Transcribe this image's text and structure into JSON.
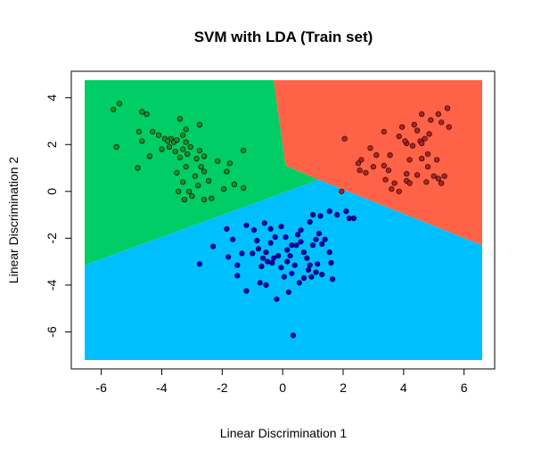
{
  "chart_data": {
    "type": "scatter",
    "title": "SVM with LDA (Train set)",
    "xlabel": "Linear Discrimination 1",
    "ylabel": "Linear Discrimination 2",
    "xlim": [
      -6.55,
      6.6
    ],
    "ylim": [
      -7.2,
      4.75
    ],
    "x_ticks": [
      -6,
      -4,
      -2,
      0,
      2,
      4,
      6
    ],
    "y_ticks": [
      -6,
      -4,
      -2,
      0,
      2,
      4
    ],
    "grid": false,
    "legend": "none",
    "regions": [
      {
        "color": "#00CD66",
        "polygon": [
          [
            -6.55,
            4.75
          ],
          [
            -0.3,
            4.75
          ],
          [
            0.1,
            1.1
          ],
          [
            1.2,
            0.5
          ],
          [
            -6.55,
            -3.15
          ]
        ]
      },
      {
        "color": "#FF6347",
        "polygon": [
          [
            -0.3,
            4.75
          ],
          [
            6.6,
            4.75
          ],
          [
            6.6,
            -2.3
          ],
          [
            1.2,
            0.5
          ],
          [
            0.1,
            1.1
          ]
        ]
      },
      {
        "color": "#00BFFF",
        "polygon": [
          [
            -6.55,
            -3.15
          ],
          [
            1.2,
            0.5
          ],
          [
            6.6,
            -2.3
          ],
          [
            6.6,
            -7.2
          ],
          [
            -6.55,
            -7.2
          ]
        ]
      }
    ],
    "series": [
      {
        "color": "#228B22",
        "points": [
          [
            -5.6,
            3.5
          ],
          [
            -5.4,
            3.75
          ],
          [
            -5.5,
            1.9
          ],
          [
            -4.65,
            3.4
          ],
          [
            -4.5,
            3.3
          ],
          [
            -4.75,
            2.55
          ],
          [
            -4.65,
            2.15
          ],
          [
            -4.8,
            1.0
          ],
          [
            -4.4,
            1.5
          ],
          [
            -4.3,
            2.55
          ],
          [
            -4.1,
            2.4
          ],
          [
            -3.9,
            2.25
          ],
          [
            -3.75,
            1.9
          ],
          [
            -3.7,
            2.25
          ],
          [
            -3.6,
            2.1
          ],
          [
            -3.4,
            3.1
          ],
          [
            -3.5,
            2.2
          ],
          [
            -3.3,
            1.8
          ],
          [
            -3.2,
            2.65
          ],
          [
            -3.3,
            2.4
          ],
          [
            -3.2,
            2.1
          ],
          [
            -3.15,
            1.6
          ],
          [
            -3.05,
            1.9
          ],
          [
            -3.4,
            1.45
          ],
          [
            -3.2,
            1.05
          ],
          [
            -3.5,
            0.8
          ],
          [
            -3.3,
            0.4
          ],
          [
            -3.1,
            0.0
          ],
          [
            -2.85,
            1.4
          ],
          [
            -2.75,
            1.75
          ],
          [
            -2.6,
            1.5
          ],
          [
            -2.7,
            1.05
          ],
          [
            -2.9,
            0.65
          ],
          [
            -2.8,
            0.25
          ],
          [
            -3.0,
            -0.2
          ],
          [
            -2.6,
            0.85
          ],
          [
            -2.45,
            0.45
          ],
          [
            -2.35,
            -0.3
          ],
          [
            -2.15,
            1.3
          ],
          [
            -1.85,
            0.85
          ],
          [
            -1.75,
            1.2
          ],
          [
            -1.95,
            0.1
          ],
          [
            -1.6,
            0.3
          ],
          [
            -1.3,
            0.15
          ],
          [
            -2.6,
            -0.35
          ],
          [
            -3.45,
            0.0
          ],
          [
            -4.0,
            1.8
          ],
          [
            -3.8,
            2.15
          ],
          [
            -3.55,
            1.7
          ],
          [
            -2.75,
            2.85
          ],
          [
            -3.25,
            -0.35
          ],
          [
            -1.3,
            1.75
          ]
        ]
      },
      {
        "color": "#B22222",
        "points": [
          [
            5.45,
            3.55
          ],
          [
            5.25,
            2.95
          ],
          [
            5.5,
            2.75
          ],
          [
            5.15,
            3.3
          ],
          [
            4.9,
            3.05
          ],
          [
            4.6,
            3.3
          ],
          [
            4.35,
            2.85
          ],
          [
            4.7,
            2.25
          ],
          [
            4.55,
            2.15
          ],
          [
            4.3,
            1.95
          ],
          [
            4.1,
            2.05
          ],
          [
            3.95,
            2.75
          ],
          [
            3.85,
            2.35
          ],
          [
            3.55,
            1.55
          ],
          [
            3.35,
            2.55
          ],
          [
            2.9,
            1.85
          ],
          [
            2.6,
            1.35
          ],
          [
            2.5,
            1.2
          ],
          [
            2.55,
            0.9
          ],
          [
            2.75,
            0.8
          ],
          [
            3.1,
            1.55
          ],
          [
            3.35,
            1.1
          ],
          [
            3.5,
            0.9
          ],
          [
            3.4,
            0.5
          ],
          [
            3.6,
            0.1
          ],
          [
            3.7,
            0.35
          ],
          [
            3.85,
            0.0
          ],
          [
            4.1,
            0.45
          ],
          [
            4.1,
            0.75
          ],
          [
            4.2,
            1.35
          ],
          [
            4.45,
            0.7
          ],
          [
            4.6,
            1.4
          ],
          [
            4.8,
            1.6
          ],
          [
            4.8,
            1.05
          ],
          [
            5.1,
            1.35
          ],
          [
            5.15,
            0.55
          ],
          [
            5.25,
            0.35
          ],
          [
            5.0,
            0.65
          ],
          [
            5.35,
            0.65
          ],
          [
            4.75,
            0.4
          ],
          [
            4.45,
            2.6
          ],
          [
            4.6,
            2.05
          ],
          [
            2.05,
            2.25
          ],
          [
            1.95,
            0.0
          ],
          [
            3.0,
            1.05
          ],
          [
            4.2,
            0.35
          ],
          [
            4.05,
            2.15
          ],
          [
            4.85,
            2.45
          ]
        ]
      },
      {
        "color": "#0000CD",
        "points": [
          [
            -2.75,
            -3.1
          ],
          [
            -2.3,
            -2.35
          ],
          [
            -1.65,
            -2.05
          ],
          [
            -1.8,
            -2.8
          ],
          [
            -1.5,
            -3.15
          ],
          [
            -1.5,
            -3.6
          ],
          [
            -1.2,
            -4.25
          ],
          [
            -1.35,
            -2.65
          ],
          [
            -1.2,
            -1.45
          ],
          [
            -0.95,
            -1.65
          ],
          [
            -0.85,
            -2.1
          ],
          [
            -1.0,
            -2.65
          ],
          [
            -0.6,
            -1.35
          ],
          [
            -0.4,
            -1.6
          ],
          [
            -0.4,
            -2.2
          ],
          [
            -0.55,
            -2.6
          ],
          [
            -0.5,
            -3.0
          ],
          [
            -0.3,
            -2.85
          ],
          [
            -0.7,
            -3.2
          ],
          [
            -0.75,
            -3.9
          ],
          [
            -0.55,
            -4.0
          ],
          [
            -0.2,
            -4.6
          ],
          [
            0.05,
            -3.65
          ],
          [
            0.15,
            -2.5
          ],
          [
            0.25,
            -2.75
          ],
          [
            0.15,
            -3.0
          ],
          [
            -0.05,
            -3.25
          ],
          [
            0.3,
            -3.5
          ],
          [
            0.4,
            -3.15
          ],
          [
            0.45,
            -2.3
          ],
          [
            0.6,
            -1.65
          ],
          [
            0.7,
            -2.6
          ],
          [
            0.8,
            -2.85
          ],
          [
            0.9,
            -3.15
          ],
          [
            1.0,
            -2.3
          ],
          [
            1.1,
            -2.05
          ],
          [
            1.2,
            -1.8
          ],
          [
            1.3,
            -2.25
          ],
          [
            1.4,
            -2.05
          ],
          [
            1.55,
            -2.6
          ],
          [
            1.15,
            -3.1
          ],
          [
            1.1,
            -3.45
          ],
          [
            1.3,
            -3.55
          ],
          [
            1.6,
            -3.05
          ],
          [
            1.55,
            -0.85
          ],
          [
            1.8,
            -1.0
          ],
          [
            2.1,
            -0.85
          ],
          [
            2.2,
            -1.15
          ],
          [
            2.35,
            -1.15
          ],
          [
            1.25,
            -1.05
          ],
          [
            0.35,
            -6.15
          ],
          [
            0.7,
            -3.7
          ],
          [
            0.95,
            -3.65
          ],
          [
            0.5,
            -1.85
          ],
          [
            0.1,
            -1.95
          ],
          [
            -0.15,
            -2.75
          ],
          [
            -0.25,
            -1.95
          ],
          [
            0.6,
            -2.15
          ],
          [
            -0.8,
            -2.45
          ],
          [
            -0.65,
            -2.85
          ],
          [
            -0.35,
            -3.05
          ],
          [
            0.2,
            -4.3
          ],
          [
            0.55,
            -3.9
          ],
          [
            -1.85,
            -1.6
          ],
          [
            1.65,
            -3.75
          ],
          [
            0.85,
            -3.35
          ],
          [
            0.9,
            -1.3
          ],
          [
            1.0,
            -1.0
          ],
          [
            0.3,
            -2.3
          ],
          [
            -0.05,
            -1.5
          ]
        ]
      }
    ]
  }
}
